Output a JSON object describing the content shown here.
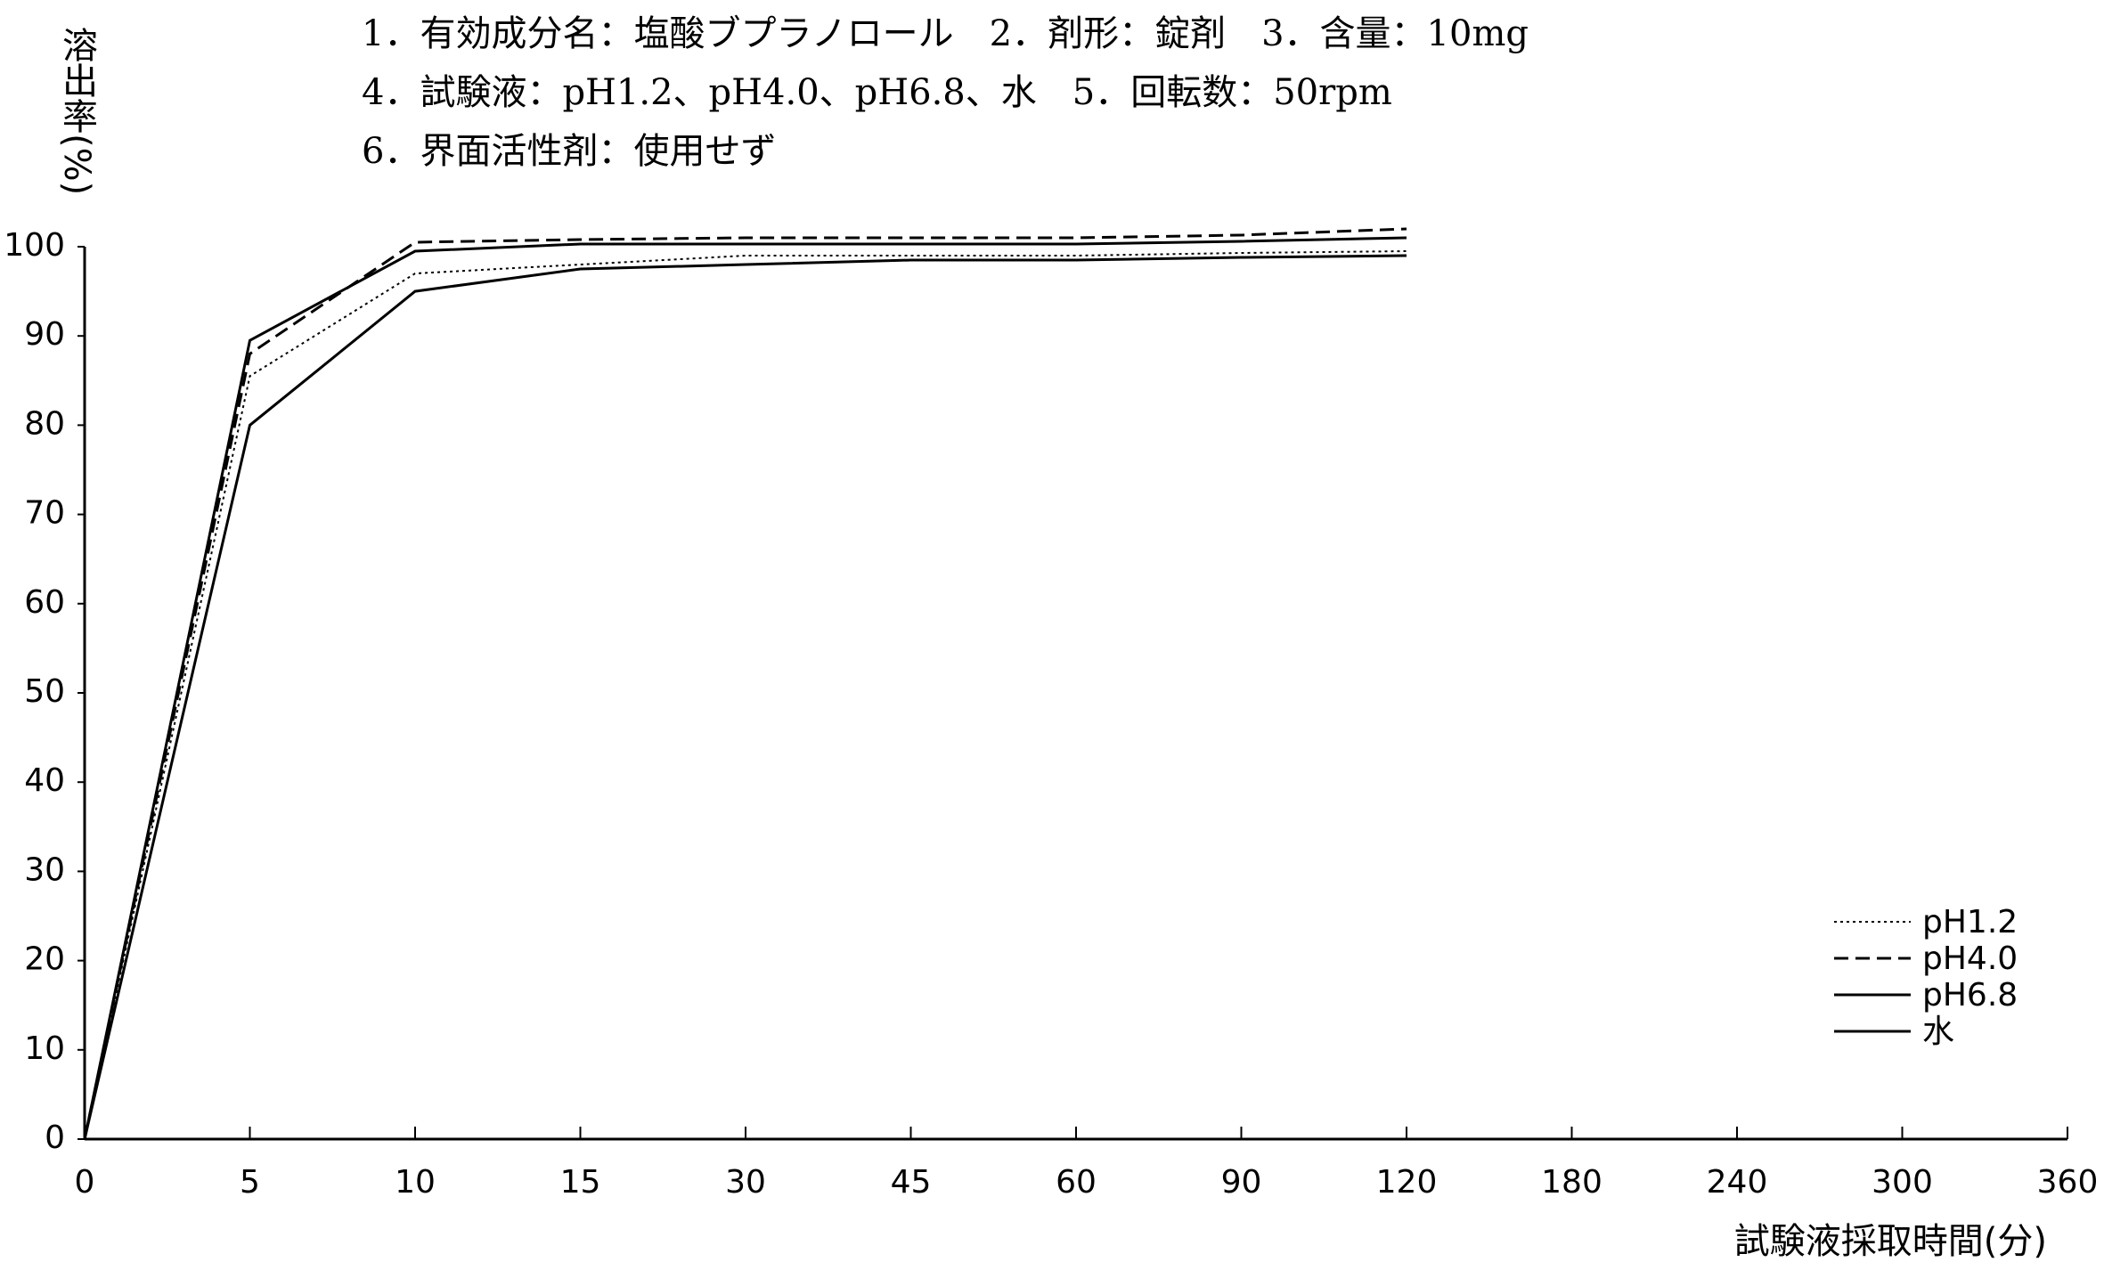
{
  "chart_data": {
    "type": "line",
    "title": [
      "1．有効成分名：塩酸ブプラノロール　2．剤形：錠剤　3．含量：10mg",
      "4．試験液：pH1.2、pH4.0、pH6.8、水　5．回転数：50rpm",
      "6．界面活性剤：使用せず"
    ],
    "y_label": "溶出率(%)",
    "x_label": "試験液採取時間(分)",
    "categories": [
      0,
      5,
      10,
      15,
      30,
      45,
      60,
      90,
      120,
      180,
      240,
      300,
      360
    ],
    "ylim": [
      0,
      100
    ],
    "yticks": [
      0,
      10,
      20,
      30,
      40,
      50,
      60,
      70,
      80,
      90,
      100
    ],
    "series": [
      {
        "name": "pH1.2",
        "color": "#000000",
        "dash": "dotted",
        "values": [
          0,
          85.5,
          97,
          98,
          99,
          99,
          99,
          99.3,
          99.5,
          null,
          null,
          null,
          null
        ]
      },
      {
        "name": "pH4.0",
        "color": "#000000",
        "dash": "dashed",
        "values": [
          0,
          88,
          100.5,
          100.8,
          101,
          101,
          101,
          101.3,
          102,
          null,
          null,
          null,
          null
        ]
      },
      {
        "name": "pH6.8",
        "color": "#000000",
        "dash": "solid",
        "values": [
          0,
          89.5,
          99.5,
          100.3,
          100.3,
          100.3,
          100.3,
          100.6,
          101,
          null,
          null,
          null,
          null
        ]
      },
      {
        "name": "水",
        "color": "#000000",
        "dash": "solid",
        "values": [
          0,
          80,
          95,
          97.5,
          98,
          98.5,
          98.5,
          98.8,
          99,
          null,
          null,
          null,
          null
        ]
      }
    ]
  }
}
